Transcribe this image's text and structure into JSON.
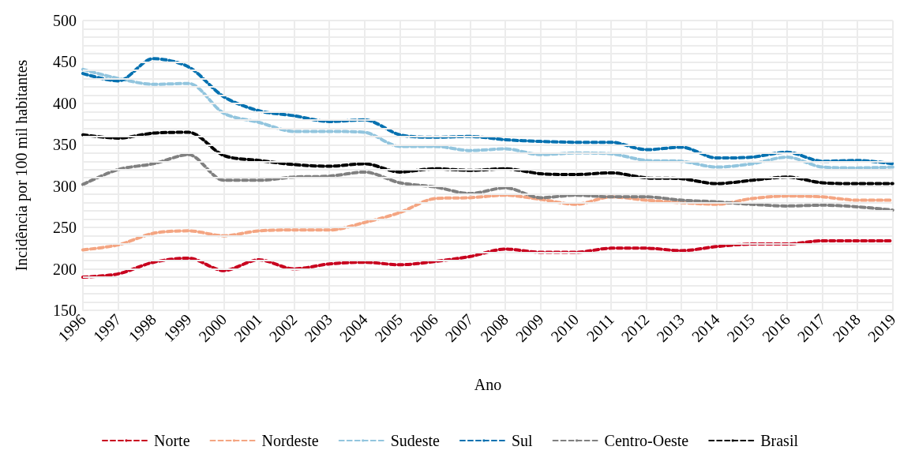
{
  "chart_data": {
    "type": "line",
    "xlabel": "Ano",
    "ylabel": "Incidência por 100 mil habitantes",
    "categories": [
      "1996",
      "1997",
      "1998",
      "1999",
      "2000",
      "2001",
      "2002",
      "2003",
      "2004",
      "2005",
      "2006",
      "2007",
      "2008",
      "2009",
      "2010",
      "2011",
      "2012",
      "2013",
      "2014",
      "2015",
      "2016",
      "2017",
      "2018",
      "2019"
    ],
    "series": [
      {
        "name": "Norte",
        "color": "#c8001e",
        "values": [
          190,
          194,
          208,
          213,
          198,
          211,
          200,
          206,
          208,
          205,
          209,
          215,
          224,
          220,
          220,
          225,
          225,
          222,
          227,
          230,
          230,
          234,
          234,
          234
        ]
      },
      {
        "name": "Nordeste",
        "color": "#f4a582",
        "values": [
          223,
          229,
          243,
          246,
          240,
          246,
          247,
          247,
          256,
          268,
          285,
          286,
          289,
          284,
          278,
          287,
          283,
          280,
          278,
          285,
          288,
          287,
          283,
          283
        ]
      },
      {
        "name": "Sudeste",
        "color": "#92c5de",
        "values": [
          441,
          430,
          423,
          424,
          388,
          377,
          366,
          366,
          365,
          348,
          348,
          343,
          345,
          338,
          340,
          339,
          331,
          330,
          323,
          327,
          335,
          323,
          322,
          323
        ]
      },
      {
        "name": "Sul",
        "color": "#0571b0",
        "values": [
          436,
          427,
          454,
          444,
          408,
          391,
          385,
          378,
          380,
          362,
          359,
          360,
          356,
          354,
          353,
          353,
          344,
          347,
          334,
          335,
          341,
          330,
          331,
          327
        ]
      },
      {
        "name": "Centro-Oeste",
        "color": "#808080",
        "values": [
          302,
          320,
          327,
          338,
          307,
          307,
          311,
          312,
          317,
          304,
          299,
          291,
          298,
          286,
          289,
          287,
          287,
          283,
          281,
          278,
          276,
          277,
          275,
          271
        ]
      },
      {
        "name": "Brasil",
        "color": "#000000",
        "values": [
          362,
          358,
          364,
          365,
          337,
          331,
          326,
          324,
          327,
          317,
          321,
          319,
          321,
          315,
          314,
          316,
          310,
          309,
          303,
          307,
          311,
          304,
          303,
          303
        ]
      }
    ],
    "ylim": [
      150,
      500
    ],
    "yticks": [
      150,
      {
        "value": 160,
        "label": null
      },
      {
        "value": 170,
        "label": null
      },
      {
        "value": 180,
        "label": null
      },
      {
        "value": 190,
        "label": null
      },
      200,
      {
        "value": 210,
        "label": null
      },
      {
        "value": 220,
        "label": null
      },
      {
        "value": 230,
        "label": null
      },
      {
        "value": 240,
        "label": null
      },
      250,
      {
        "value": 260,
        "label": null
      },
      {
        "value": 270,
        "label": null
      },
      {
        "value": 280,
        "label": null
      },
      {
        "value": 290,
        "label": null
      },
      300,
      {
        "value": 310,
        "label": null
      },
      {
        "value": 320,
        "label": null
      },
      {
        "value": 330,
        "label": null
      },
      {
        "value": 340,
        "label": null
      },
      350,
      {
        "value": 360,
        "label": null
      },
      {
        "value": 370,
        "label": null
      },
      {
        "value": 380,
        "label": null
      },
      {
        "value": 390,
        "label": null
      },
      400,
      {
        "value": 410,
        "label": null
      },
      {
        "value": 420,
        "label": null
      },
      {
        "value": 430,
        "label": null
      },
      {
        "value": 440,
        "label": null
      },
      450,
      {
        "value": 460,
        "label": null
      },
      {
        "value": 470,
        "label": null
      },
      {
        "value": 480,
        "label": null
      },
      {
        "value": 490,
        "label": null
      },
      500
    ],
    "grid": true,
    "legend": "bottom",
    "marker": "none",
    "line_style": "dashed"
  }
}
